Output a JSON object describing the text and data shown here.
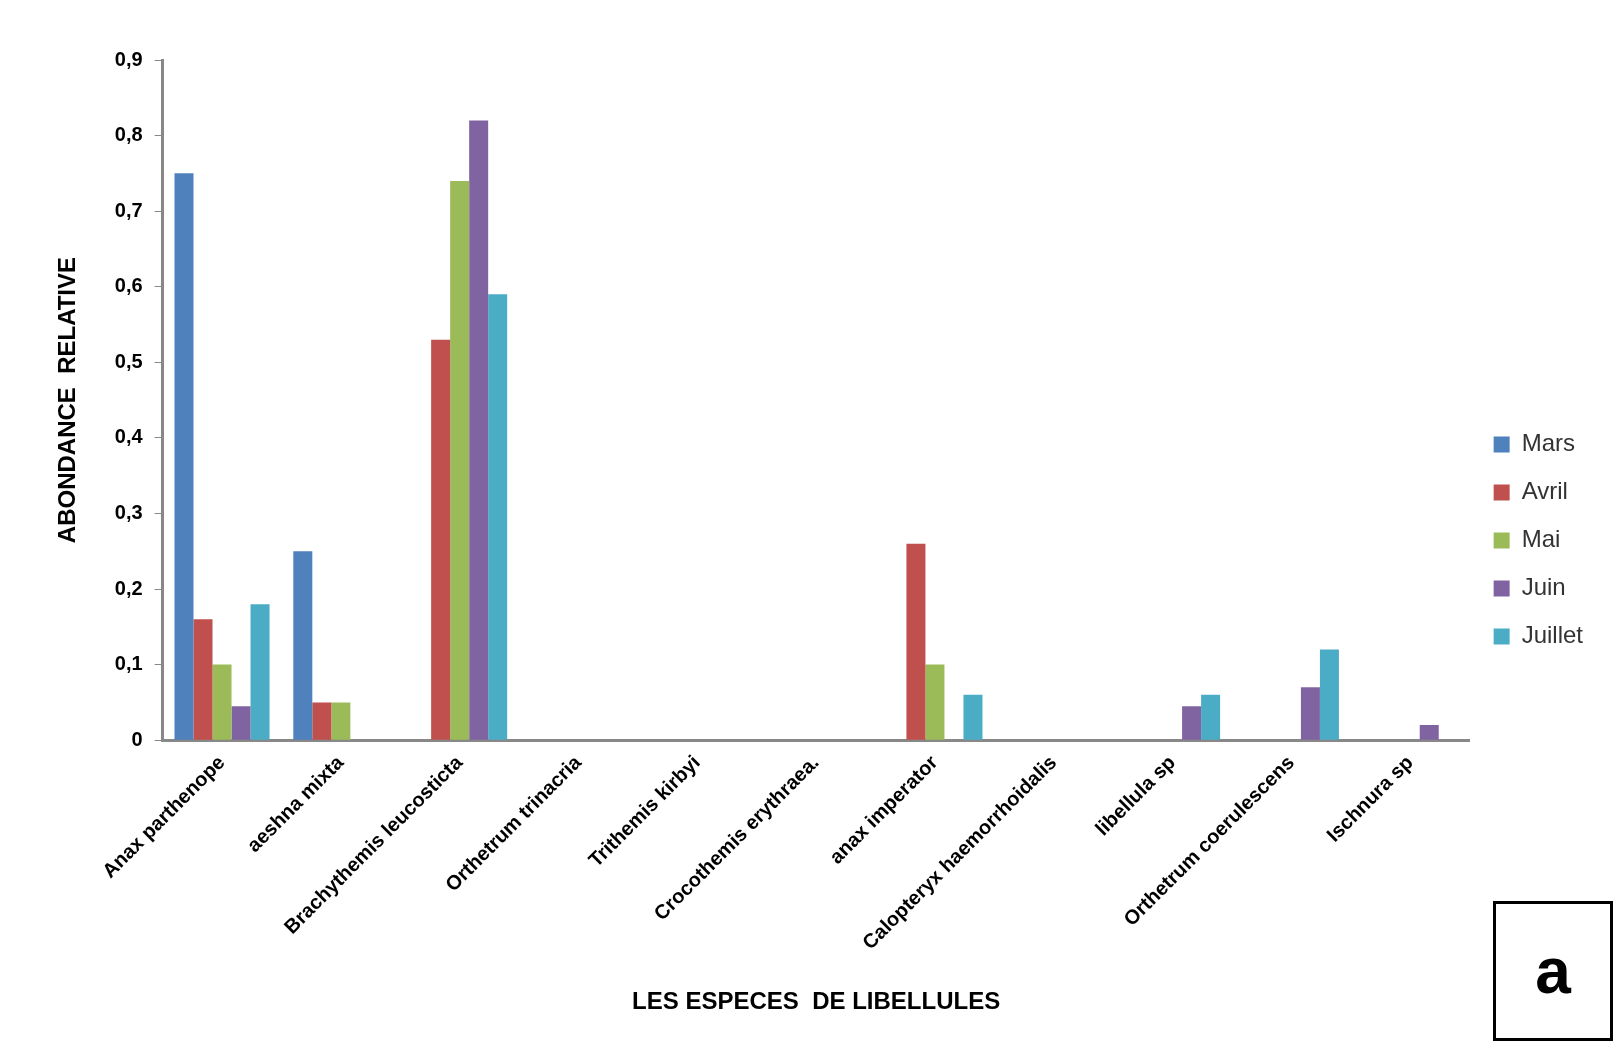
{
  "chart_data": {
    "type": "bar",
    "xlabel": "LES ESPECES  DE LIBELLULES",
    "ylabel": "ABONDANCE  RELATIVE",
    "categories": [
      "Anax parthenope",
      "aeshna mixta",
      "Brachythemis leucosticta",
      "Orthetrum trinacria",
      "Trithemis kirbyi",
      "Crocothemis erythraea.",
      "anax imperator",
      "Calopteryx haemorrhoidalis",
      "libellula sp",
      "Orthetrum coerulescens",
      "Ischnura sp"
    ],
    "series": [
      {
        "name": "Mars",
        "color": "#4f81bd",
        "values": [
          0.75,
          0.25,
          0,
          0,
          0,
          0,
          0,
          0,
          0,
          0,
          0
        ]
      },
      {
        "name": "Avril",
        "color": "#c0504d",
        "values": [
          0.16,
          0.05,
          0.53,
          0,
          0,
          0,
          0.26,
          0,
          0,
          0,
          0
        ]
      },
      {
        "name": "Mai",
        "color": "#9bbb59",
        "values": [
          0.1,
          0.05,
          0.74,
          0,
          0,
          0,
          0.1,
          0,
          0,
          0,
          0
        ]
      },
      {
        "name": "Juin",
        "color": "#8064a2",
        "values": [
          0.045,
          0,
          0.82,
          0,
          0,
          0,
          0,
          0,
          0.045,
          0.07,
          0.02
        ]
      },
      {
        "name": "Juillet",
        "color": "#4bacc6",
        "values": [
          0.18,
          0,
          0.59,
          0,
          0,
          0,
          0.06,
          0,
          0.06,
          0.12,
          0
        ]
      }
    ],
    "ylim": [
      0,
      0.9
    ],
    "yticks": [
      {
        "value": 0,
        "label": "0"
      },
      {
        "value": 0.1,
        "label": "0,1"
      },
      {
        "value": 0.2,
        "label": "0,2"
      },
      {
        "value": 0.3,
        "label": "0,3"
      },
      {
        "value": 0.4,
        "label": "0,4"
      },
      {
        "value": 0.5,
        "label": "0,5"
      },
      {
        "value": 0.6,
        "label": "0,6"
      },
      {
        "value": 0.7,
        "label": "0,7"
      },
      {
        "value": 0.8,
        "label": "0,8"
      },
      {
        "value": 0.9,
        "label": "0,9"
      }
    ],
    "grid": false,
    "legend": "right",
    "annotations": [
      "a"
    ]
  }
}
